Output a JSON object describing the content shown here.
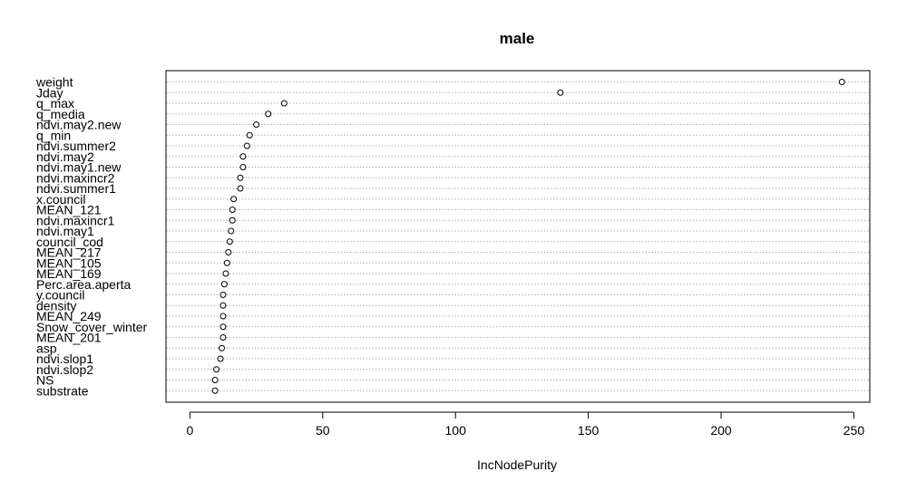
{
  "chart_data": {
    "type": "scatter",
    "title": "male",
    "xlabel": "IncNodePurity",
    "ylabel": "",
    "xlim": [
      -9,
      256
    ],
    "xticks": [
      "0",
      "50",
      "100",
      "150",
      "200",
      "250"
    ],
    "grid": "horizontal dotted",
    "legend": "none",
    "categories": [
      "weight",
      "Jday",
      "q_max",
      "q_media",
      "ndvi.may2.new",
      "q_min",
      "ndvi.summer2",
      "ndvi.may2",
      "ndvi.may1.new",
      "ndvi.maxincr2",
      "ndvi.summer1",
      "x.council",
      "MEAN_121",
      "ndvi.maxincr1",
      "ndvi.may1",
      "council_cod",
      "MEAN_217",
      "MEAN_105",
      "MEAN_169",
      "Perc.area.aperta",
      "y.council",
      "density",
      "MEAN_249",
      "Snow_cover_winter",
      "MEAN_201",
      "asp",
      "ndvi.slop1",
      "ndvi.slop2",
      "NS",
      "substrate"
    ],
    "values": [
      245.5,
      139.5,
      35.5,
      29.5,
      25,
      22.5,
      21.5,
      20,
      20,
      19,
      19,
      16.5,
      16,
      16,
      15.5,
      15,
      14.5,
      14,
      13.5,
      13,
      12.5,
      12.5,
      12.5,
      12.5,
      12.5,
      12,
      11.5,
      10,
      9.5,
      9.5
    ]
  }
}
